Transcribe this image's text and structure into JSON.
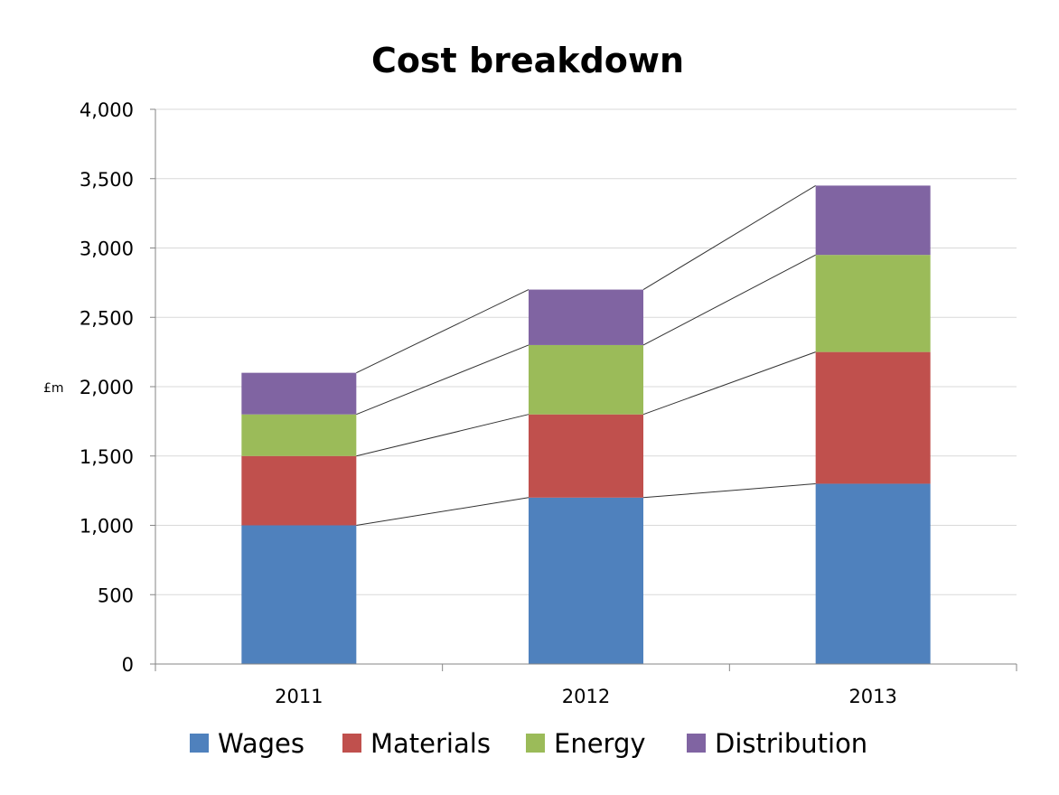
{
  "chart_data": {
    "type": "bar",
    "stacked": true,
    "title": "Cost breakdown",
    "xlabel": "",
    "ylabel": "£m",
    "categories": [
      "2011",
      "2012",
      "2013"
    ],
    "series": [
      {
        "name": "Wages",
        "values": [
          1000,
          1200,
          1300
        ],
        "color": "#4F81BD"
      },
      {
        "name": "Materials",
        "values": [
          500,
          600,
          950
        ],
        "color": "#C0504D"
      },
      {
        "name": "Energy",
        "values": [
          300,
          500,
          700
        ],
        "color": "#9BBB59"
      },
      {
        "name": "Distribution",
        "values": [
          300,
          400,
          500
        ],
        "color": "#8064A2"
      }
    ],
    "ylim": [
      0,
      4000
    ],
    "yticks": [
      "0",
      "500",
      "1,000",
      "1,500",
      "2,000",
      "2,500",
      "3,000",
      "3,500",
      "4,000"
    ],
    "grid": true,
    "series_lines": true,
    "legend_position": "bottom"
  }
}
